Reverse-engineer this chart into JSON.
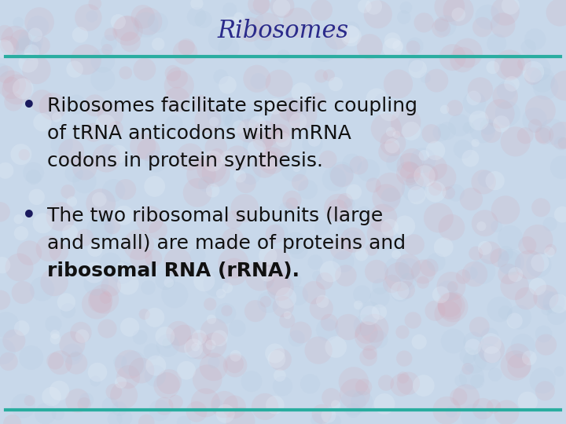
{
  "title": "Ribosomes",
  "title_color": "#2B2B8B",
  "title_fontsize": 22,
  "title_style": "italic",
  "title_family": "serif",
  "bullet1_line1": "Ribosomes facilitate specific coupling",
  "bullet1_line2": "of tRNA anticodons with mRNA",
  "bullet1_line3": "codons in protein synthesis.",
  "bullet2_line1": "The two ribosomal subunits (large",
  "bullet2_line2": "and small) are made of proteins and",
  "bullet2_line3": "ribosomal RNA (rRNA).",
  "bullet_fontsize": 18,
  "bullet_color": "#111111",
  "bullet_dot_color": "#1a1a5e",
  "line_color": "#2AADA0",
  "bg_color": "#c8d8ea",
  "bg_pink_color": "#d4a8b8",
  "bg_blue_color": "#b0c8e0",
  "line_lw": 3.0,
  "figwidth": 7.2,
  "figheight": 5.4,
  "dpi": 100
}
